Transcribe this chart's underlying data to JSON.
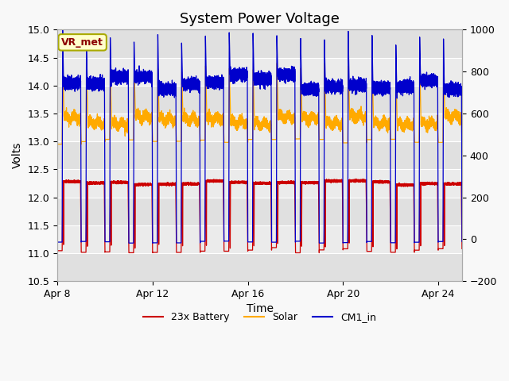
{
  "title": "System Power Voltage",
  "xlabel": "Time",
  "ylabel_left": "Volts",
  "ylim_left": [
    10.5,
    15.0
  ],
  "ylim_right": [
    -200,
    1000
  ],
  "yticks_left": [
    10.5,
    11.0,
    11.5,
    12.0,
    12.5,
    13.0,
    13.5,
    14.0,
    14.5,
    15.0
  ],
  "yticks_right": [
    -200,
    0,
    200,
    400,
    600,
    800,
    1000
  ],
  "xtick_labels": [
    "Apr 8",
    "Apr 12",
    "Apr 16",
    "Apr 20",
    "Apr 24"
  ],
  "xtick_positions": [
    0,
    4,
    8,
    12,
    16
  ],
  "n_days": 17,
  "color_battery": "#cc0000",
  "color_solar": "#ffaa00",
  "color_cm1": "#0000cc",
  "legend_labels": [
    "23x Battery",
    "Solar",
    "CM1_in"
  ],
  "annotation_text": "VR_met",
  "annotation_color": "#8B0000",
  "annotation_bg": "#ffffcc",
  "annotation_border": "#aaaa00",
  "title_fontsize": 13,
  "figsize": [
    6.4,
    4.8
  ],
  "dpi": 100
}
